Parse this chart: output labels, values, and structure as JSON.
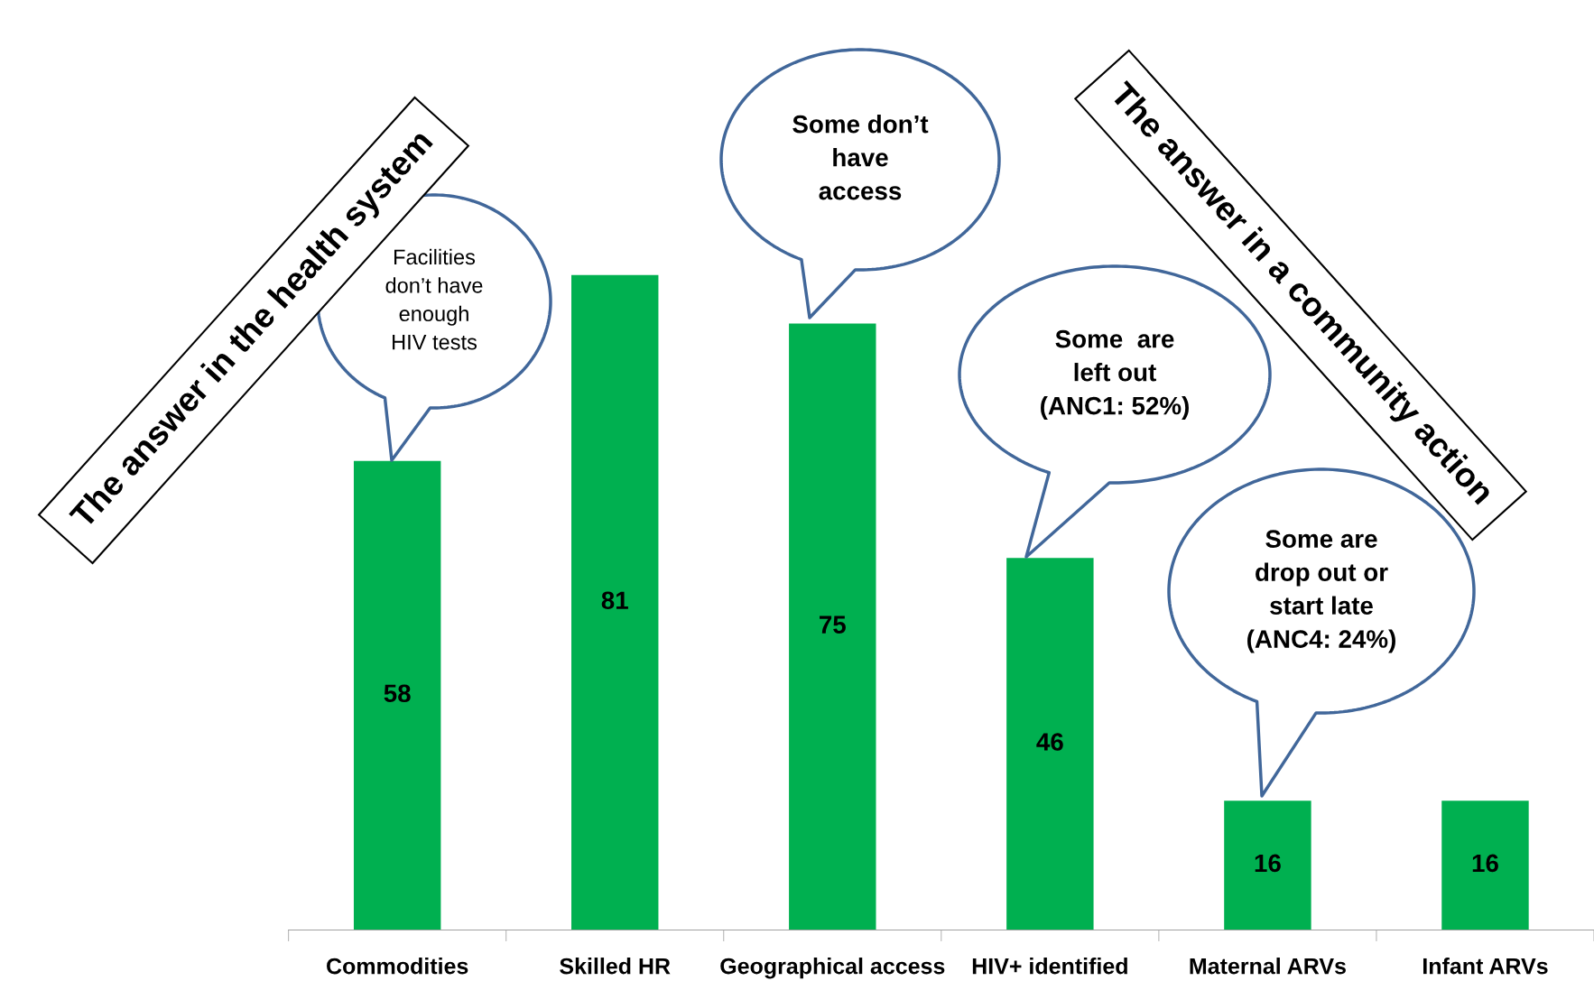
{
  "chart_data": {
    "type": "bar",
    "categories": [
      "Commodities",
      "Skilled HR",
      "Geographical access",
      "HIV+ identified",
      "Maternal ARVs",
      "Infant ARVs"
    ],
    "values": [
      58,
      81,
      75,
      46,
      16,
      16
    ],
    "color": "#00b050",
    "data_labels": true,
    "grid": false,
    "legend": false,
    "tick_labels": "x",
    "annotations": [
      "Facilities\ndon’t have\nenough\nHIV tests",
      "Some don’t\nhave\naccess",
      "Some  are\nleft out\n(ANC1: 52%)",
      "Some are\ndrop out or\nstart late\n(ANC4: 24%)",
      "The answer in the health system",
      "The answer in a community action"
    ]
  }
}
